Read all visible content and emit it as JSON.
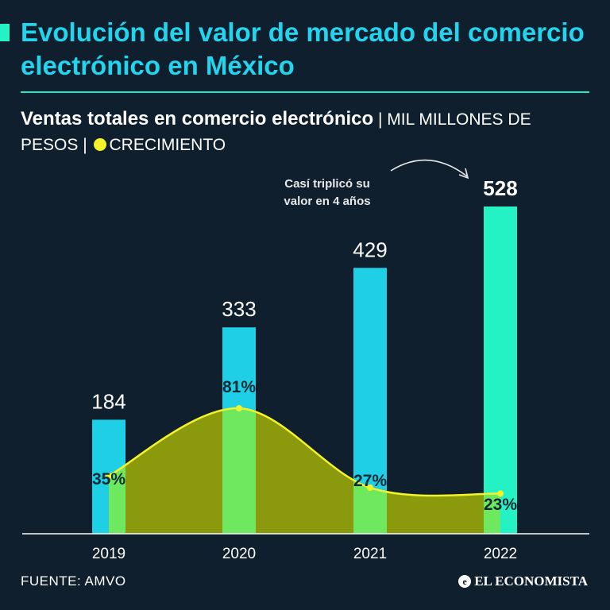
{
  "header": {
    "title": "Evolución del valor de mercado del comercio electrónico en México",
    "subtitle_bold": "Ventas totales en comercio electrónico",
    "subtitle_units": "| MIL MILLONES DE PESOS |",
    "legend_growth": "CRECIMIENTO"
  },
  "footer": {
    "source": "FUENTE: AMVO",
    "brand": "EL ECONOMISTA"
  },
  "colors": {
    "background": "#0f1f2e",
    "bar": "#1ecfe6",
    "bar_last": "#25f2c4",
    "growth_line": "#f4f32a",
    "growth_fill": "#8a9a0c",
    "overlap": "#6ee85e"
  },
  "chart_data": {
    "type": "bar",
    "title": "Ventas totales en comercio electrónico",
    "ylabel": "Mil millones de pesos",
    "categories": [
      "2019",
      "2020",
      "2021",
      "2022"
    ],
    "series": [
      {
        "name": "Ventas totales",
        "values": [
          184,
          333,
          429,
          528
        ],
        "labels": [
          "184",
          "333",
          "429",
          "528"
        ]
      },
      {
        "name": "Crecimiento",
        "values": [
          35,
          81,
          27,
          23
        ],
        "labels": [
          "35%",
          "81%",
          "27%",
          "23%"
        ]
      }
    ],
    "ylim": [
      0,
      528
    ],
    "annotation": "Casí triplicó su valor en 4 años"
  }
}
